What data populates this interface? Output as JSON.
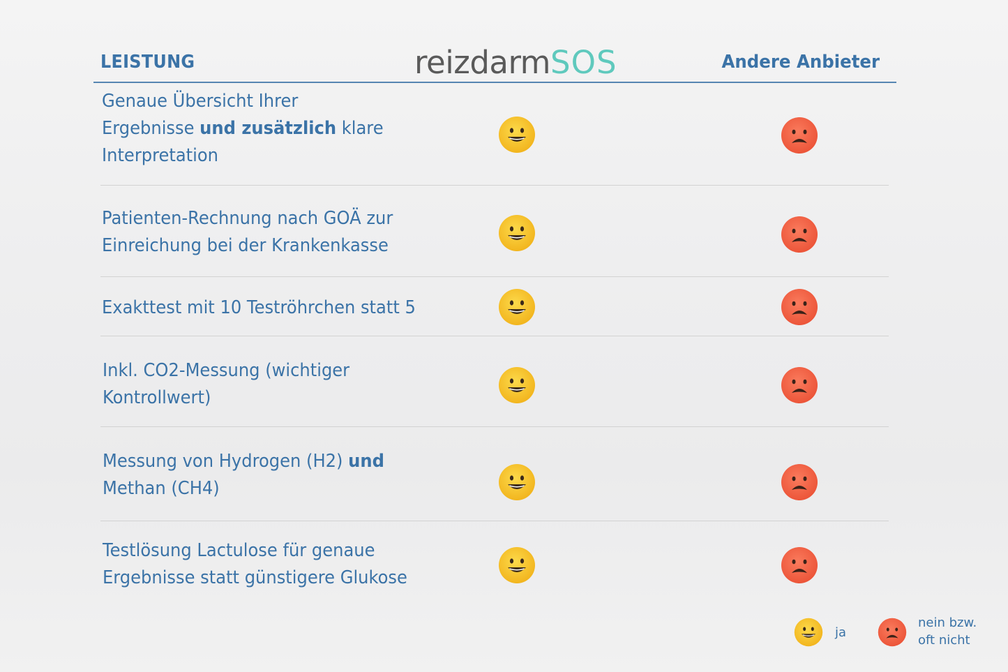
{
  "header": {
    "leistung": "LEISTUNG",
    "logo_main": "reizdarm",
    "logo_accent": "SOS",
    "other": "Andere Anbieter"
  },
  "rows": [
    {
      "line1": "Genaue Übersicht Ihrer",
      "line2_pre": "Ergebnisse ",
      "line2_bold": "und zusätzlich",
      "line2_post": " klare",
      "line3": "Interpretation",
      "reizdarm": "ja",
      "andere": "nein bzw. oft nicht"
    },
    {
      "line1": "Patienten-Rechnung nach GOÄ zur",
      "line2": "Einreichung bei der Krankenkasse",
      "reizdarm": "ja",
      "andere": "nein bzw. oft nicht"
    },
    {
      "line1": "Exakttest mit 10 Teströhrchen statt 5",
      "reizdarm": "ja",
      "andere": "nein bzw. oft nicht"
    },
    {
      "line1": "Inkl. CO2-Messung (wichtiger",
      "line2": "Kontrollwert)",
      "reizdarm": "ja",
      "andere": "nein bzw. oft nicht"
    },
    {
      "line1_pre": "Messung von Hydrogen (H2) ",
      "line1_bold": "und",
      "line2": "Methan (CH4)",
      "reizdarm": "ja",
      "andere": "nein bzw. oft nicht"
    },
    {
      "line1": "Testlösung Lactulose für genaue",
      "line2": "Ergebnisse statt günstigere Glukose",
      "reizdarm": "ja",
      "andere": "nein bzw. oft nicht"
    }
  ],
  "legend": {
    "yes_label": "ja",
    "no_label_line1": "nein bzw.",
    "no_label_line2": "oft nicht"
  },
  "colors": {
    "text_blue": "#3b73a7",
    "happy_face": "#f7c532",
    "sad_face": "#f56a4e",
    "logo_gray": "#5a5a5a",
    "logo_teal": "#5fc9bd"
  },
  "icons": {
    "yes": "grinning-face-icon",
    "no": "frowning-face-icon"
  }
}
